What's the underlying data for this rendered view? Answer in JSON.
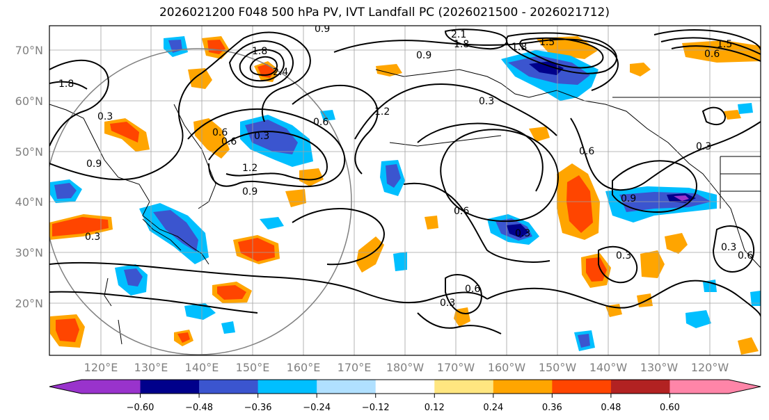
{
  "title": "2026021200 F048 500 hPa PV, IVT Landfall PC (2026021500 - 2026021712)",
  "lat_labels": [
    "70°N",
    "60°N",
    "50°N",
    "40°N",
    "30°N",
    "20°N"
  ],
  "lon_labels": [
    "120°E",
    "130°E",
    "140°E",
    "150°E",
    "160°E",
    "170°E",
    "180°W",
    "170°W",
    "160°W",
    "150°W",
    "140°W",
    "130°W",
    "120°W"
  ],
  "colorbar": {
    "ticks": [
      "−0.60",
      "−0.48",
      "−0.36",
      "−0.24",
      "−0.12",
      "0.12",
      "0.24",
      "0.36",
      "0.48",
      "0.60"
    ],
    "colors": [
      "#9933cc",
      "#00008b",
      "#3b55cf",
      "#00bfff",
      "#b0e0ff",
      "#ffffff",
      "#ffe680",
      "#ffa500",
      "#ff4500",
      "#b22222",
      "#ff85a8",
      "#ff85a8"
    ]
  },
  "contour_labels": [
    "0.9",
    "2.1",
    "1.8",
    "0.9",
    "1.8",
    "1.5",
    "2.4",
    "1.8",
    "0.6",
    "1.5",
    "1.8",
    "0.3",
    "0.9",
    "0.6",
    "0.3",
    "0.6",
    "1.2",
    "0.9",
    "1.2",
    "0.3",
    "0.6",
    "0.3",
    "0.3",
    "0.3",
    "0.6",
    "0.9",
    "0.3",
    "0.6",
    "0.3",
    "0.3",
    "0.6",
    "0.6"
  ]
}
